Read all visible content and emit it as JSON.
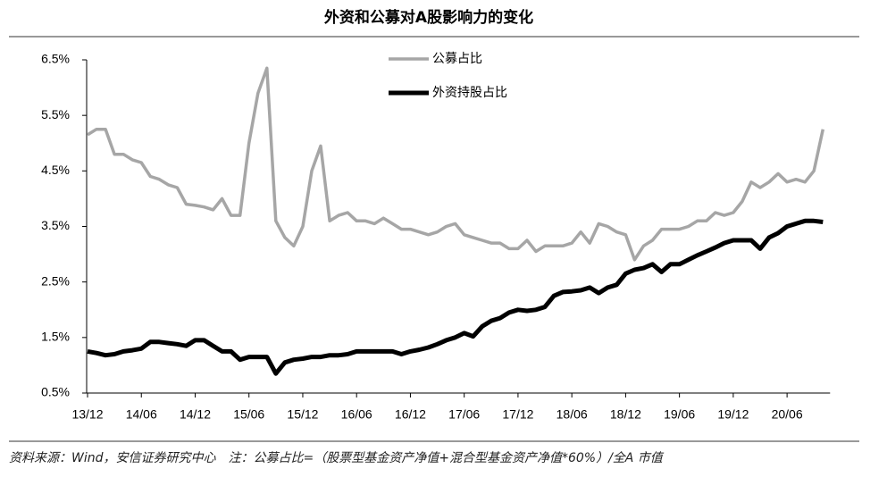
{
  "chart_data": {
    "type": "line",
    "title": "外资和公募对A股影响力的变化",
    "note": "资料来源：Wind，安信证券研究中心　注：公募占比=（股票型基金资产净值+混合型基金资产净值*60%）/全A 市值",
    "categories": [
      "13/12",
      null,
      null,
      null,
      null,
      null,
      "14/06",
      null,
      null,
      null,
      null,
      null,
      "14/12",
      null,
      null,
      null,
      null,
      null,
      "15/06",
      null,
      null,
      null,
      null,
      null,
      "15/12",
      null,
      null,
      null,
      null,
      null,
      "16/06",
      null,
      null,
      null,
      null,
      null,
      "16/12",
      null,
      null,
      null,
      null,
      null,
      "17/06",
      null,
      null,
      null,
      null,
      null,
      "17/12",
      null,
      null,
      null,
      null,
      null,
      "18/06",
      null,
      null,
      null,
      null,
      null,
      "18/12",
      null,
      null,
      null,
      null,
      null,
      "19/06",
      null,
      null,
      null,
      null,
      null,
      "19/12",
      null,
      null,
      null,
      null,
      null,
      "20/06",
      null,
      null,
      null,
      null
    ],
    "series": [
      {
        "name": "公募占比",
        "color": "#a6a6a6",
        "width": 3.5,
        "values": [
          5.15,
          5.25,
          5.25,
          4.8,
          4.8,
          4.7,
          4.65,
          4.4,
          4.35,
          4.25,
          4.2,
          3.9,
          3.88,
          3.85,
          3.8,
          4.0,
          3.7,
          3.7,
          5.0,
          5.9,
          6.35,
          3.6,
          3.3,
          3.15,
          3.5,
          4.5,
          4.95,
          3.6,
          3.7,
          3.75,
          3.6,
          3.6,
          3.55,
          3.65,
          3.55,
          3.45,
          3.45,
          3.4,
          3.35,
          3.4,
          3.5,
          3.55,
          3.35,
          3.3,
          3.25,
          3.2,
          3.2,
          3.1,
          3.1,
          3.25,
          3.05,
          3.15,
          3.15,
          3.15,
          3.2,
          3.4,
          3.2,
          3.55,
          3.5,
          3.4,
          3.35,
          2.9,
          3.15,
          3.25,
          3.45,
          3.45,
          3.45,
          3.5,
          3.6,
          3.6,
          3.75,
          3.7,
          3.75,
          3.95,
          4.3,
          4.2,
          4.3,
          4.45,
          4.3,
          4.35,
          4.3,
          4.5,
          5.25
        ]
      },
      {
        "name": "外资持股占比",
        "color": "#000000",
        "width": 5,
        "values": [
          1.25,
          1.22,
          1.18,
          1.2,
          1.25,
          1.27,
          1.3,
          1.42,
          1.42,
          1.4,
          1.38,
          1.35,
          1.45,
          1.45,
          1.35,
          1.25,
          1.25,
          1.1,
          1.15,
          1.15,
          1.15,
          0.85,
          1.05,
          1.1,
          1.12,
          1.15,
          1.15,
          1.18,
          1.18,
          1.2,
          1.25,
          1.25,
          1.25,
          1.25,
          1.25,
          1.2,
          1.25,
          1.28,
          1.32,
          1.38,
          1.45,
          1.5,
          1.58,
          1.52,
          1.7,
          1.8,
          1.85,
          1.95,
          2.0,
          1.98,
          2.0,
          2.05,
          2.25,
          2.32,
          2.33,
          2.35,
          2.4,
          2.3,
          2.4,
          2.45,
          2.65,
          2.72,
          2.75,
          2.82,
          2.68,
          2.82,
          2.82,
          2.9,
          2.98,
          3.05,
          3.12,
          3.2,
          3.25,
          3.25,
          3.25,
          3.1,
          3.3,
          3.38,
          3.5,
          3.55,
          3.6,
          3.6,
          3.58
        ]
      }
    ],
    "ylim": [
      0.5,
      6.5
    ],
    "yticks": [
      {
        "value": 0.5,
        "label": "0.5%"
      },
      {
        "value": 1.5,
        "label": "1.5%"
      },
      {
        "value": 2.5,
        "label": "2.5%"
      },
      {
        "value": 3.5,
        "label": "3.5%"
      },
      {
        "value": 4.5,
        "label": "4.5%"
      },
      {
        "value": 5.5,
        "label": "5.5%"
      },
      {
        "value": 6.5,
        "label": "6.5%"
      }
    ],
    "grid": false
  }
}
